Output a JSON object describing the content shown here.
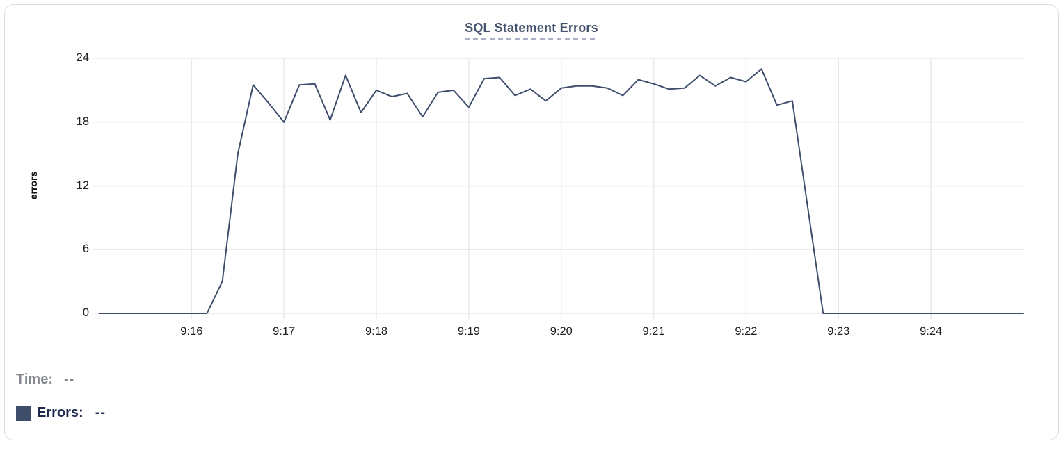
{
  "title": {
    "text": "SQL Statement Errors"
  },
  "y_axis": {
    "label": "errors"
  },
  "legend": {
    "time_label": "Time:",
    "time_value": "--",
    "errors_label": "Errors:",
    "errors_value": "--"
  },
  "colors": {
    "line": "#3d4d6b",
    "legend_swatch": "#3e4d6a",
    "title_text": "#44536e",
    "title_underline": "#a8b2c4",
    "gridline": "#e8e9eb",
    "tick_mark": "#dcdee1",
    "tick_text": "#1d1e21",
    "time_label_gray": "#85888f",
    "errors_label_navy": "#1e2a4d",
    "card_border": "#d8dadd"
  },
  "chart_data": {
    "type": "line",
    "title": "SQL Statement Errors",
    "xlabel": "",
    "ylabel": "errors",
    "ylim": [
      0,
      24
    ],
    "y_ticks": [
      0,
      6,
      12,
      18,
      24
    ],
    "x_tick_labels": [
      "9:16",
      "9:17",
      "9:18",
      "9:19",
      "9:20",
      "9:21",
      "9:22",
      "9:23",
      "9:24"
    ],
    "x_range_start": "9:15:00",
    "x_range_end": "9:25:00",
    "sample_interval_seconds": 10,
    "grid": true,
    "legend_position": "bottom-left",
    "series": [
      {
        "name": "Errors",
        "color": "#3d4d6b",
        "start_time": "9:15:00",
        "values": [
          0,
          0,
          0,
          0,
          0,
          0,
          0,
          0,
          3,
          15,
          21.5,
          19.8,
          18,
          21.5,
          21.6,
          18.2,
          22.4,
          18.9,
          21,
          20.4,
          20.7,
          18.5,
          20.8,
          21,
          19.4,
          22.1,
          22.2,
          20.5,
          21.1,
          20,
          21.2,
          21.4,
          21.4,
          21.2,
          20.5,
          22,
          21.6,
          21.1,
          21.2,
          22.4,
          21.4,
          22.2,
          21.8,
          23,
          19.6,
          20,
          10,
          0,
          0,
          0,
          0,
          0,
          0,
          0,
          0,
          0,
          0,
          0,
          0,
          0,
          0
        ]
      }
    ]
  }
}
